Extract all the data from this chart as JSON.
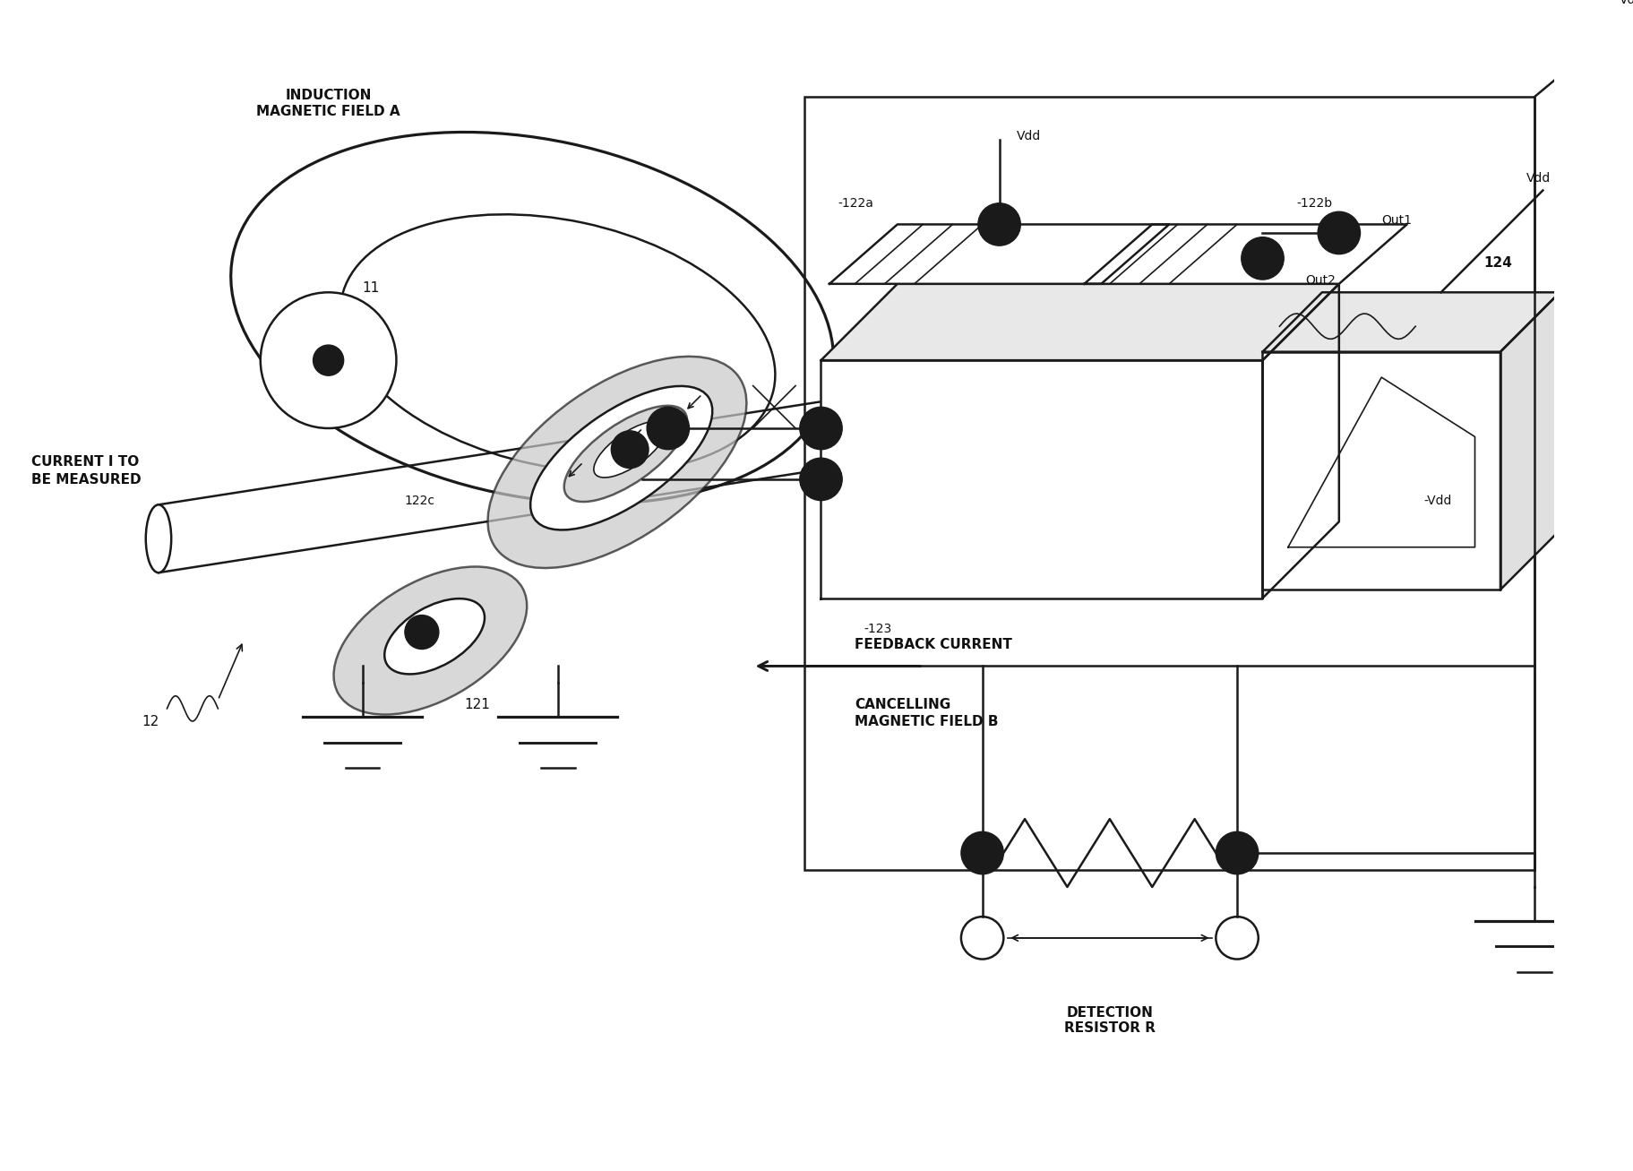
{
  "background_color": "#ffffff",
  "line_color": "#1a1a1a",
  "fill_gray": "#c8c8c8",
  "fill_white": "#ffffff",
  "text_color": "#111111",
  "lw_main": 1.8,
  "lw_thin": 1.2,
  "labels": {
    "induction": "INDUCTION\nMAGNETIC FIELD A",
    "current": "CURRENT I TO\nBE MEASURED",
    "feedback": "FEEDBACK CURRENT",
    "cancelling": "CANCELLING\nMAGNETIC FIELD B",
    "detection": "DETECTION\nRESISTOR R",
    "vdd_top": "Vdd",
    "vdd_right": "Vdd",
    "neg_vdd": "-Vdd",
    "out1": "Out1",
    "out2": "Out2",
    "n11": "11",
    "n12": "12",
    "n121": "121",
    "n122a": "-122a",
    "n122b": "-122b",
    "n122c": "122c",
    "n123": "-123",
    "n124": "124"
  },
  "fig_width": 18.23,
  "fig_height": 13.07
}
